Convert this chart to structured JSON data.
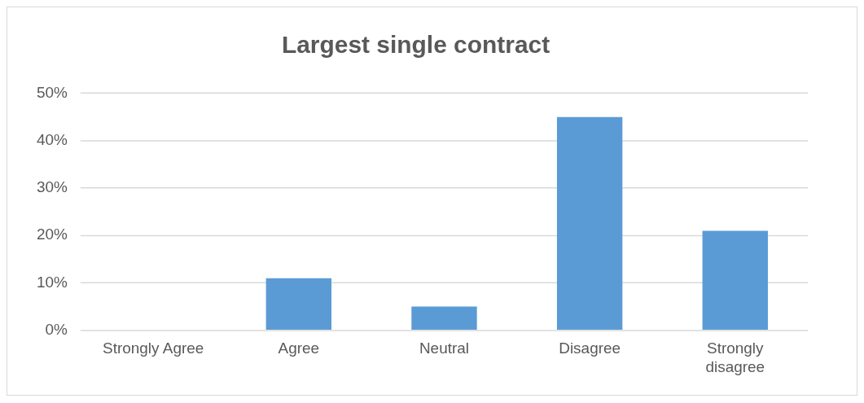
{
  "chart_data": {
    "type": "bar",
    "title": "Largest single contract",
    "categories": [
      "Strongly Agree",
      "Agree",
      "Neutral",
      "Disagree",
      "Strongly disagree"
    ],
    "values": [
      0,
      11,
      5,
      45,
      21
    ],
    "color": "#5b9bd5",
    "ylim": [
      0,
      50
    ],
    "yticks": [
      {
        "value": 0,
        "label": "0%"
      },
      {
        "value": 10,
        "label": "10%"
      },
      {
        "value": 20,
        "label": "20%"
      },
      {
        "value": 30,
        "label": "30%"
      },
      {
        "value": 40,
        "label": "40%"
      },
      {
        "value": 50,
        "label": "50%"
      }
    ],
    "grid": "y",
    "legend": false
  }
}
